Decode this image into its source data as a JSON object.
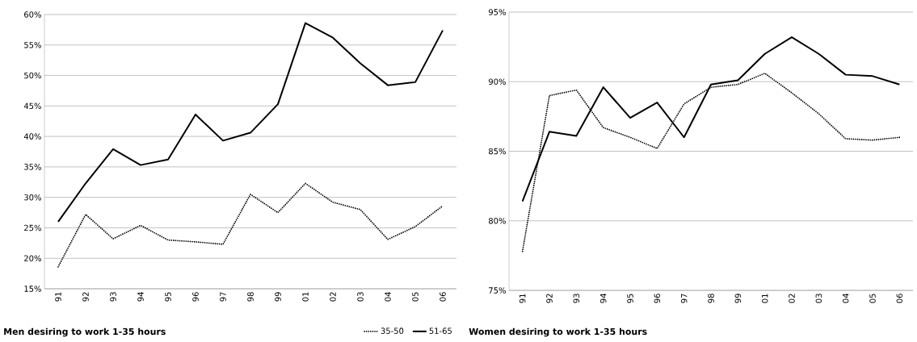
{
  "chart_data": [
    {
      "type": "line",
      "title": "Men desiring to work 1-35 hours",
      "categories": [
        "91",
        "92",
        "93",
        "94",
        "95",
        "96",
        "97",
        "98",
        "99",
        "01",
        "02",
        "03",
        "04",
        "05",
        "06"
      ],
      "series": [
        {
          "name": "35-50",
          "color": "#000000",
          "line_style": "dotted",
          "values": [
            18.6,
            27.2,
            23.2,
            25.4,
            23.0,
            22.7,
            22.3,
            30.5,
            27.5,
            32.3,
            29.2,
            28.0,
            23.1,
            25.2,
            28.6
          ]
        },
        {
          "name": "51-65",
          "color": "#000000",
          "line_style": "solid",
          "values": [
            26.0,
            32.3,
            37.9,
            35.3,
            36.2,
            43.6,
            39.3,
            40.6,
            45.3,
            58.6,
            56.2,
            52.0,
            48.4,
            48.9,
            57.4
          ]
        }
      ],
      "ylim": [
        15,
        60
      ],
      "yticks": [
        {
          "value": 15,
          "label": "15%"
        },
        {
          "value": 20,
          "label": "20%"
        },
        {
          "value": 25,
          "label": "25%"
        },
        {
          "value": 30,
          "label": "30%"
        },
        {
          "value": 35,
          "label": "35%"
        },
        {
          "value": 40,
          "label": "40%"
        },
        {
          "value": 45,
          "label": "45%"
        },
        {
          "value": 50,
          "label": "50%"
        },
        {
          "value": 55,
          "label": "55%"
        },
        {
          "value": 60,
          "label": "60%"
        }
      ],
      "grid": "y",
      "legend": "bottom right"
    },
    {
      "type": "line",
      "title": "Women desiring to work 1-35 hours",
      "categories": [
        "91",
        "92",
        "93",
        "94",
        "95",
        "96",
        "97",
        "98",
        "99",
        "01",
        "02",
        "03",
        "04",
        "05",
        "06"
      ],
      "series": [
        {
          "color": "#000000",
          "line_style": "dotted",
          "values": [
            77.8,
            89.0,
            89.4,
            86.7,
            86.0,
            85.2,
            88.4,
            89.6,
            89.8,
            90.6,
            89.2,
            87.7,
            85.9,
            85.8,
            86.0
          ]
        },
        {
          "color": "#000000",
          "line_style": "solid",
          "values": [
            81.4,
            86.4,
            86.1,
            89.6,
            87.4,
            88.5,
            86.0,
            89.8,
            90.1,
            92.0,
            93.2,
            92.0,
            90.5,
            90.4,
            89.8
          ]
        }
      ],
      "ylim": [
        75,
        95
      ],
      "yticks": [
        {
          "value": 75,
          "label": "75%"
        },
        {
          "value": 80,
          "label": "80%"
        },
        {
          "value": 85,
          "label": "85%"
        },
        {
          "value": 90,
          "label": "90%"
        },
        {
          "value": 95,
          "label": "95%"
        }
      ],
      "grid": "y"
    }
  ]
}
